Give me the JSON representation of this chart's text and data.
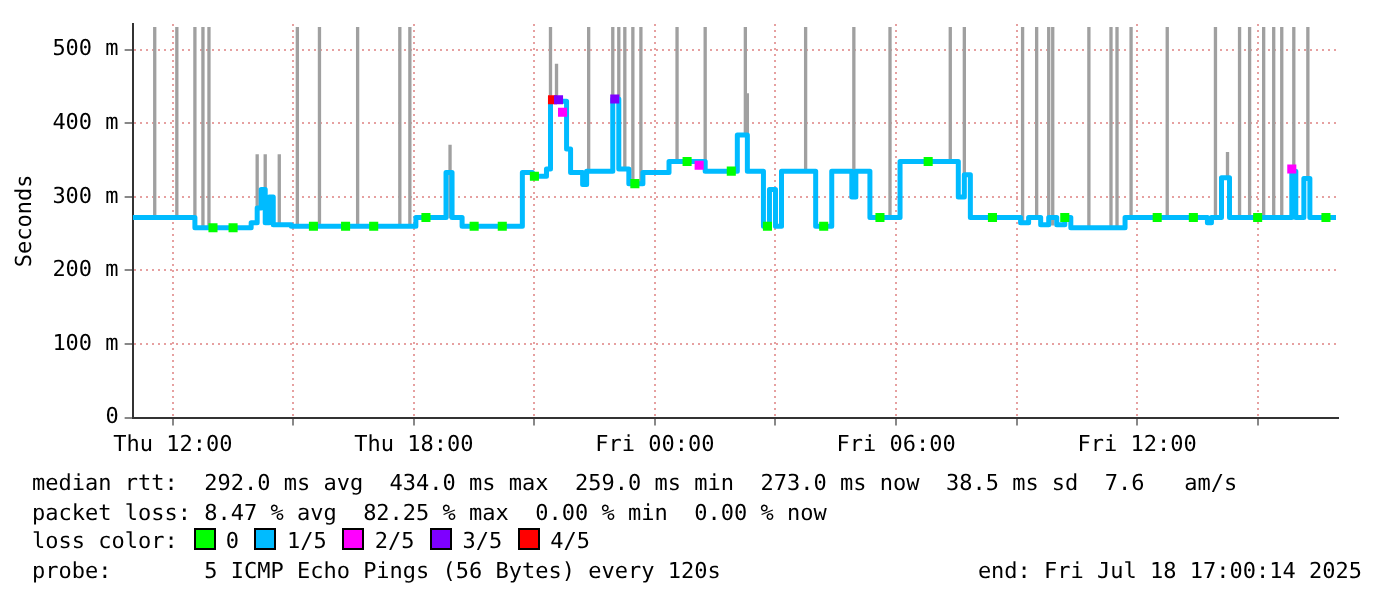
{
  "chart_data": {
    "type": "step",
    "ylabel": "Seconds",
    "legend_title": "loss color:",
    "legend": "bottom",
    "grid": true,
    "xlim": [
      "2025-07-17T11:00",
      "2025-07-18T17:00"
    ],
    "xticks": [
      {
        "value": "2025-07-17T12:00",
        "label": "Thu 12:00"
      },
      {
        "value": "2025-07-17T15:00",
        "label": null
      },
      {
        "value": "2025-07-17T18:00",
        "label": "Thu 18:00"
      },
      {
        "value": "2025-07-17T21:00",
        "label": null
      },
      {
        "value": "2025-07-18T00:00",
        "label": "Fri 00:00"
      },
      {
        "value": "2025-07-18T03:00",
        "label": null
      },
      {
        "value": "2025-07-18T06:00",
        "label": "Fri 06:00"
      },
      {
        "value": "2025-07-18T09:00",
        "label": null
      },
      {
        "value": "2025-07-18T12:00",
        "label": "Fri 12:00"
      },
      {
        "value": "2025-07-18T15:00",
        "label": null
      }
    ],
    "ylim": [
      0,
      535
    ],
    "yticks": [
      {
        "value": 0,
        "label": "0"
      },
      {
        "value": 100,
        "label": "100 m"
      },
      {
        "value": 200,
        "label": "200 m"
      },
      {
        "value": 300,
        "label": "300 m"
      },
      {
        "value": 400,
        "label": "400 m"
      },
      {
        "value": 500,
        "label": "500 m"
      }
    ],
    "series": [
      {
        "type": "bar",
        "color": "#a0a0a0",
        "x": [
          "2025-07-17T11:33",
          "2025-07-17T12:06",
          "2025-07-17T12:33",
          "2025-07-17T12:45",
          "2025-07-17T12:54",
          "2025-07-17T14:06",
          "2025-07-17T14:18",
          "2025-07-17T14:39",
          "2025-07-17T15:06",
          "2025-07-17T15:39",
          "2025-07-17T16:36",
          "2025-07-17T17:39",
          "2025-07-17T17:54",
          "2025-07-17T18:54",
          "2025-07-17T21:24",
          "2025-07-17T21:33",
          "2025-07-17T22:21",
          "2025-07-17T22:57",
          "2025-07-17T23:06",
          "2025-07-17T23:15",
          "2025-07-17T23:27",
          "2025-07-17T23:39",
          "2025-07-18T00:33",
          "2025-07-18T01:15",
          "2025-07-18T02:15",
          "2025-07-18T02:18",
          "2025-07-18T03:45",
          "2025-07-18T04:57",
          "2025-07-18T05:51",
          "2025-07-18T07:21",
          "2025-07-18T07:42",
          "2025-07-18T09:09",
          "2025-07-18T09:30",
          "2025-07-18T09:48",
          "2025-07-18T09:54",
          "2025-07-18T10:48",
          "2025-07-18T11:21",
          "2025-07-18T11:30",
          "2025-07-18T11:51",
          "2025-07-18T12:45",
          "2025-07-18T13:57",
          "2025-07-18T14:15",
          "2025-07-18T14:33",
          "2025-07-18T14:48",
          "2025-07-18T15:09",
          "2025-07-18T15:24",
          "2025-07-18T15:36",
          "2025-07-18T15:54",
          "2025-07-18T16:15"
        ],
        "base": [
          272,
          272,
          258,
          258,
          258,
          285,
          265,
          262,
          260,
          260,
          260,
          260,
          260,
          272,
          430,
          430,
          335,
          433,
          338,
          338,
          318,
          318,
          348,
          335,
          384,
          335,
          335,
          300,
          272,
          348,
          330,
          265,
          272,
          272,
          262,
          258,
          258,
          258,
          272,
          272,
          272,
          326,
          272,
          272,
          272,
          272,
          272,
          335,
          325
        ],
        "values": [
          258,
          258,
          272,
          272,
          272,
          72,
          92,
          95,
          270,
          270,
          270,
          270,
          270,
          98,
          100,
          50,
          195,
          97,
          192,
          192,
          212,
          212,
          182,
          195,
          146,
          105,
          195,
          230,
          258,
          182,
          200,
          265,
          258,
          258,
          268,
          272,
          272,
          272,
          258,
          258,
          258,
          34,
          258,
          258,
          258,
          258,
          258,
          195,
          205
        ]
      },
      {
        "type": "scatter",
        "name": "0",
        "color": "#00ff00",
        "marker": "square",
        "x": [
          "2025-07-17T13:00",
          "2025-07-17T13:30",
          "2025-07-17T15:30",
          "2025-07-17T16:18",
          "2025-07-17T17:00",
          "2025-07-17T18:18",
          "2025-07-17T19:30",
          "2025-07-17T20:12",
          "2025-07-17T21:00",
          "2025-07-17T23:30",
          "2025-07-18T00:48",
          "2025-07-18T01:54",
          "2025-07-18T02:48",
          "2025-07-18T04:12",
          "2025-07-18T05:36",
          "2025-07-18T06:48",
          "2025-07-18T08:24",
          "2025-07-18T10:12",
          "2025-07-18T12:30",
          "2025-07-18T13:24",
          "2025-07-18T15:00",
          "2025-07-18T16:42"
        ],
        "values": [
          258,
          258,
          260,
          260,
          260,
          272,
          260,
          260,
          328,
          318,
          348,
          335,
          260,
          260,
          272,
          348,
          272,
          272,
          272,
          272,
          272,
          272
        ]
      },
      {
        "name": "1/5",
        "color": "#00bbff",
        "x": [
          "2025-07-17T11:00",
          "2025-07-17T12:33",
          "2025-07-17T13:57",
          "2025-07-17T14:06",
          "2025-07-17T14:12",
          "2025-07-17T14:18",
          "2025-07-17T14:24",
          "2025-07-17T14:30",
          "2025-07-17T14:57",
          "2025-07-17T18:03",
          "2025-07-17T18:48",
          "2025-07-17T18:57",
          "2025-07-17T19:12",
          "2025-07-17T20:42",
          "2025-07-17T20:57",
          "2025-07-17T21:18",
          "2025-07-17T21:24",
          "2025-07-17T21:48",
          "2025-07-17T21:54",
          "2025-07-17T22:12",
          "2025-07-17T22:18",
          "2025-07-17T22:57",
          "2025-07-17T23:06",
          "2025-07-17T23:21",
          "2025-07-17T23:42",
          "2025-07-18T00:21",
          "2025-07-18T01:15",
          "2025-07-18T02:03",
          "2025-07-18T02:18",
          "2025-07-18T02:42",
          "2025-07-18T02:51",
          "2025-07-18T03:00",
          "2025-07-18T03:09",
          "2025-07-18T04:00",
          "2025-07-18T04:24",
          "2025-07-18T04:54",
          "2025-07-18T05:00",
          "2025-07-18T05:21",
          "2025-07-18T06:06",
          "2025-07-18T07:33",
          "2025-07-18T07:42",
          "2025-07-18T07:51",
          "2025-07-18T09:06",
          "2025-07-18T09:18",
          "2025-07-18T09:36",
          "2025-07-18T09:48",
          "2025-07-18T10:00",
          "2025-07-18T10:12",
          "2025-07-18T10:21",
          "2025-07-18T11:42",
          "2025-07-18T13:45",
          "2025-07-18T13:51",
          "2025-07-18T14:06",
          "2025-07-18T14:18",
          "2025-07-18T15:51",
          "2025-07-18T15:57",
          "2025-07-18T16:09",
          "2025-07-18T16:18",
          "2025-07-18T16:57"
        ],
        "values": [
          272,
          258,
          265,
          285,
          310,
          265,
          300,
          262,
          260,
          272,
          333,
          272,
          260,
          333,
          328,
          338,
          430,
          365,
          333,
          317,
          335,
          433,
          338,
          318,
          333,
          348,
          335,
          384,
          335,
          260,
          310,
          260,
          335,
          260,
          335,
          300,
          335,
          272,
          348,
          300,
          330,
          272,
          265,
          272,
          262,
          272,
          262,
          272,
          258,
          272,
          265,
          272,
          326,
          272,
          335,
          272,
          325,
          272,
          272
        ]
      },
      {
        "type": "scatter",
        "name": "2/5",
        "color": "#ff00ff",
        "marker": "square",
        "x": [
          "2025-07-17T21:42",
          "2025-07-18T01:06",
          "2025-07-18T15:51"
        ],
        "values": [
          415,
          343,
          338
        ]
      },
      {
        "type": "scatter",
        "name": "3/5",
        "color": "#7e00ff",
        "marker": "square",
        "x": [
          "2025-07-17T21:36",
          "2025-07-17T23:00"
        ],
        "values": [
          432,
          433
        ]
      },
      {
        "type": "scatter",
        "name": "4/5",
        "color": "#ff0000",
        "marker": "square",
        "x": [
          "2025-07-17T21:27"
        ],
        "values": [
          432
        ]
      }
    ],
    "annotations": [
      "median rtt:  292.0 ms avg  434.0 ms max  259.0 ms min  273.0 ms now  38.5 ms sd  7.6   am/s",
      "packet loss: 8.47 % avg  82.25 % max  0.00 % min  0.00 % now",
      "probe:       5 ICMP Echo Pings (56 Bytes) every 120s",
      "end: Fri Jul 18 17:00:14 2025"
    ]
  }
}
